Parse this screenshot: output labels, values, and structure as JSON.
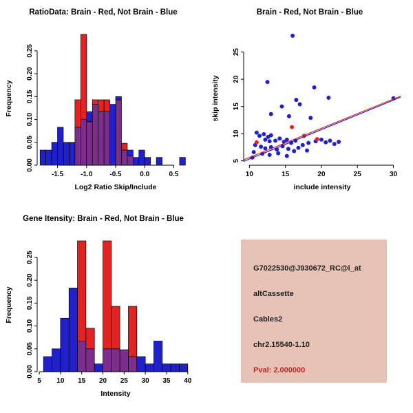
{
  "colors": {
    "blue": "#2121CC",
    "red": "#E32222",
    "overlap": "#7D2E8D",
    "axis": "#000000"
  },
  "chart_data": [
    {
      "type": "bar",
      "title": "RatioData: Brain - Red, Not Brain - Blue",
      "xlabel": "Log2 Ratio Skip/Include",
      "ylabel": "Frequency",
      "xlim": [
        -1.85,
        0.85
      ],
      "ylim": [
        0,
        0.295
      ],
      "xticks": {
        "values": [
          -1.5,
          -1.0,
          -0.5,
          0.0,
          0.5
        ],
        "labels": [
          "-1.5",
          "-1.0",
          "-0.5",
          "0.0",
          "0.5"
        ]
      },
      "yticks": {
        "values": [
          0,
          0.05,
          0.1,
          0.15,
          0.2,
          0.25
        ],
        "labels": [
          "0.00",
          "0.05",
          "0.10",
          "0.15",
          "0.20",
          "0.25"
        ]
      },
      "bin_start": -1.8,
      "bin_width": 0.1,
      "legend_note": "Brain = red, Not Brain = blue, overlap = purple",
      "series": [
        {
          "name": "Not Brain",
          "color": "blue",
          "values": [
            0.033,
            0.033,
            0.05,
            0.083,
            0.05,
            0.05,
            0.083,
            0.1,
            0.117,
            0.133,
            0.117,
            0.117,
            0.133,
            0.15,
            0.033,
            0.033,
            0.017,
            0.033,
            0.017,
            0,
            0.017,
            0,
            0,
            0,
            0.017
          ]
        },
        {
          "name": "Brain",
          "color": "red",
          "values": [
            0,
            0,
            0,
            0,
            0,
            0,
            0.143,
            0.286,
            0.095,
            0.143,
            0.143,
            0.143,
            0,
            0.143,
            0.048,
            0.02,
            0,
            0,
            0,
            0,
            0,
            0,
            0,
            0,
            0
          ]
        }
      ]
    },
    {
      "type": "scatter",
      "title": "Brain - Red, Not Brain - Blue",
      "xlabel": "include intensity",
      "ylabel": "skip intensity",
      "xlim": [
        9.2,
        31
      ],
      "ylim": [
        4.2,
        29
      ],
      "xticks": {
        "values": [
          10,
          15,
          20,
          25,
          30
        ],
        "labels": [
          "10",
          "15",
          "20",
          "25",
          "30"
        ]
      },
      "yticks": {
        "values": [
          5,
          10,
          15,
          20,
          25
        ],
        "labels": [
          "5",
          "10",
          "15",
          "20",
          "25"
        ]
      },
      "series": [
        {
          "name": "Not Brain",
          "color": "blue",
          "points": [
            [
              16,
              28
            ],
            [
              12.5,
              19.5
            ],
            [
              19,
              18.5
            ],
            [
              30,
              16.5
            ],
            [
              16.5,
              16.2
            ],
            [
              21,
              16.6
            ],
            [
              14.5,
              15
            ],
            [
              17,
              15.4
            ],
            [
              13,
              13.6
            ],
            [
              15.5,
              13.2
            ],
            [
              18.5,
              12.9
            ],
            [
              11,
              10.2
            ],
            [
              11.4,
              9.6
            ],
            [
              12,
              9.9
            ],
            [
              12.6,
              9.4
            ],
            [
              13,
              9.7
            ],
            [
              12.2,
              8.9
            ],
            [
              12.8,
              8.6
            ],
            [
              13.6,
              8.7
            ],
            [
              14.2,
              9.1
            ],
            [
              14.8,
              8.5
            ],
            [
              15.2,
              8.9
            ],
            [
              15.8,
              8.3
            ],
            [
              16.4,
              8.7
            ],
            [
              10.8,
              7.9
            ],
            [
              11.6,
              7.6
            ],
            [
              12.2,
              7.3
            ],
            [
              13,
              7.5
            ],
            [
              13.8,
              7.1
            ],
            [
              14.6,
              7.7
            ],
            [
              15.4,
              7.2
            ],
            [
              16.8,
              7.4
            ],
            [
              17.4,
              7.9
            ],
            [
              18.2,
              8.3
            ],
            [
              19.2,
              8.6
            ],
            [
              20,
              8.9
            ],
            [
              20.6,
              8.4
            ],
            [
              21.2,
              8.7
            ],
            [
              21.8,
              8.1
            ],
            [
              22.4,
              8.5
            ],
            [
              10.6,
              6.6
            ],
            [
              11.8,
              6.3
            ],
            [
              12.8,
              6.1
            ],
            [
              14,
              6.4
            ],
            [
              15.2,
              5.9
            ],
            [
              10.4,
              5.6
            ],
            [
              16.2,
              6.8
            ],
            [
              18,
              6.9
            ]
          ]
        },
        {
          "name": "Brain",
          "color": "red",
          "points": [
            [
              11,
              8.4
            ],
            [
              15.9,
              11.2
            ],
            [
              17.6,
              9.6
            ],
            [
              19.4,
              9.0
            ]
          ]
        }
      ],
      "lines": [
        {
          "color": "red",
          "x1": 9.2,
          "y1": 5.2,
          "x2": 31,
          "y2": 16.9
        },
        {
          "color": "blue",
          "x1": 9.2,
          "y1": 4.9,
          "x2": 31,
          "y2": 16.7
        }
      ]
    },
    {
      "type": "bar",
      "title": "Gene Itensity: Brain - Red, Not Brain - Blue",
      "xlabel": "Intensity",
      "ylabel": "Frequency",
      "xlim": [
        4.5,
        41.5
      ],
      "ylim": [
        0,
        0.295
      ],
      "xticks": {
        "values": [
          5,
          10,
          15,
          20,
          25,
          30,
          35,
          40
        ],
        "labels": [
          "5",
          "10",
          "15",
          "20",
          "25",
          "30",
          "35",
          "40"
        ]
      },
      "yticks": {
        "values": [
          0,
          0.05,
          0.1,
          0.15,
          0.2,
          0.25
        ],
        "labels": [
          "0.00",
          "0.05",
          "0.10",
          "0.15",
          "0.20",
          "0.25"
        ]
      },
      "bin_start": 6,
      "bin_width": 2,
      "legend_note": "Brain = red, Not Brain = blue, overlap = purple",
      "series": [
        {
          "name": "Not Brain",
          "color": "blue",
          "values": [
            0.033,
            0.05,
            0.117,
            0.183,
            0.067,
            0.05,
            0.017,
            0.05,
            0.05,
            0.048,
            0.033,
            0.033,
            0.017,
            0.067,
            0.017,
            0.017,
            0.017
          ]
        },
        {
          "name": "Brain",
          "color": "red",
          "values": [
            0,
            0,
            0,
            0,
            0.286,
            0.095,
            0,
            0.286,
            0.143,
            0.048,
            0.143,
            0,
            0,
            0,
            0,
            0,
            0
          ]
        }
      ]
    }
  ],
  "info_box": {
    "bg_color": "#E7C3B6",
    "lines": [
      {
        "text": "G7022530@J930672_RC@i_at",
        "color": "#1F1F1F"
      },
      {
        "text": "altCassette",
        "color": "#1F1F1F"
      },
      {
        "text": "Cables2",
        "color": "#1F1F1F"
      },
      {
        "text": "chr2.15540-1.10",
        "color": "#1F1F1F"
      },
      {
        "text": "Pval: 2.000000",
        "color": "#C42323"
      }
    ]
  }
}
